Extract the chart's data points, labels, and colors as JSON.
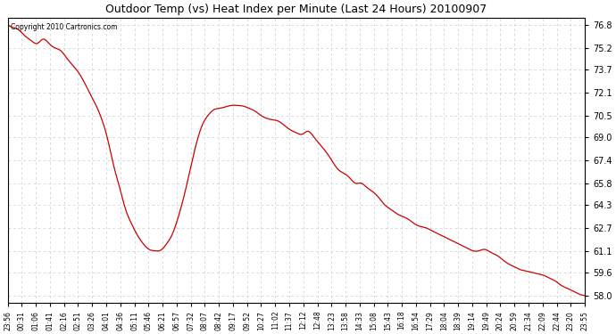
{
  "title": "Outdoor Temp (vs) Heat Index per Minute (Last 24 Hours) 20100907",
  "copyright": "Copyright 2010 Cartronics.com",
  "line_color": "#cc0000",
  "background_color": "#ffffff",
  "grid_color": "#cccccc",
  "yticks": [
    58.0,
    59.6,
    61.1,
    62.7,
    64.3,
    65.8,
    67.4,
    69.0,
    70.5,
    72.1,
    73.7,
    75.2,
    76.8
  ],
  "ylim": [
    57.5,
    77.3
  ],
  "xtick_labels": [
    "23:56",
    "00:31",
    "01:06",
    "01:41",
    "02:16",
    "02:51",
    "03:26",
    "04:01",
    "04:36",
    "05:11",
    "05:46",
    "06:21",
    "06:57",
    "07:32",
    "08:07",
    "08:42",
    "09:17",
    "09:52",
    "10:27",
    "11:02",
    "11:37",
    "12:12",
    "12:48",
    "13:23",
    "13:58",
    "14:33",
    "15:08",
    "15:43",
    "16:18",
    "16:54",
    "17:29",
    "18:04",
    "18:39",
    "19:14",
    "19:49",
    "20:24",
    "20:59",
    "21:34",
    "22:09",
    "22:44",
    "23:20",
    "23:55"
  ],
  "key_points": [
    [
      0,
      76.8
    ],
    [
      1,
      76.6
    ],
    [
      2,
      76.4
    ],
    [
      3,
      76.0
    ],
    [
      4,
      75.7
    ],
    [
      5,
      75.5
    ],
    [
      6,
      75.8
    ],
    [
      7,
      75.5
    ],
    [
      8,
      75.2
    ],
    [
      9,
      75.0
    ],
    [
      10,
      74.5
    ],
    [
      11,
      74.0
    ],
    [
      12,
      73.5
    ],
    [
      13,
      72.8
    ],
    [
      14,
      72.0
    ],
    [
      15,
      71.2
    ],
    [
      16,
      70.2
    ],
    [
      17,
      68.8
    ],
    [
      18,
      67.0
    ],
    [
      19,
      65.5
    ],
    [
      20,
      64.0
    ],
    [
      21,
      63.0
    ],
    [
      22,
      62.2
    ],
    [
      23,
      61.6
    ],
    [
      24,
      61.2
    ],
    [
      25,
      61.1
    ],
    [
      26,
      61.15
    ],
    [
      27,
      61.6
    ],
    [
      28,
      62.3
    ],
    [
      29,
      63.5
    ],
    [
      30,
      65.0
    ],
    [
      31,
      66.8
    ],
    [
      32,
      68.5
    ],
    [
      33,
      69.8
    ],
    [
      34,
      70.5
    ],
    [
      35,
      70.9
    ],
    [
      36,
      71.0
    ],
    [
      37,
      71.1
    ],
    [
      38,
      71.2
    ],
    [
      39,
      71.2
    ],
    [
      40,
      71.15
    ],
    [
      41,
      71.0
    ],
    [
      42,
      70.8
    ],
    [
      43,
      70.5
    ],
    [
      44,
      70.3
    ],
    [
      45,
      70.2
    ],
    [
      46,
      70.1
    ],
    [
      47,
      69.8
    ],
    [
      48,
      69.5
    ],
    [
      49,
      69.3
    ],
    [
      50,
      69.2
    ],
    [
      51,
      69.4
    ],
    [
      52,
      69.0
    ],
    [
      53,
      68.5
    ],
    [
      54,
      68.0
    ],
    [
      55,
      67.4
    ],
    [
      56,
      66.8
    ],
    [
      57,
      66.5
    ],
    [
      58,
      66.2
    ],
    [
      59,
      65.8
    ],
    [
      60,
      65.8
    ],
    [
      61,
      65.5
    ],
    [
      62,
      65.2
    ],
    [
      63,
      64.8
    ],
    [
      64,
      64.3
    ],
    [
      65,
      64.0
    ],
    [
      66,
      63.7
    ],
    [
      67,
      63.5
    ],
    [
      68,
      63.3
    ],
    [
      69,
      63.0
    ],
    [
      70,
      62.8
    ],
    [
      71,
      62.7
    ],
    [
      72,
      62.5
    ],
    [
      73,
      62.3
    ],
    [
      74,
      62.1
    ],
    [
      75,
      61.9
    ],
    [
      76,
      61.7
    ],
    [
      77,
      61.5
    ],
    [
      78,
      61.3
    ],
    [
      79,
      61.1
    ],
    [
      80,
      61.1
    ],
    [
      81,
      61.2
    ],
    [
      82,
      61.0
    ],
    [
      83,
      60.8
    ],
    [
      84,
      60.5
    ],
    [
      85,
      60.2
    ],
    [
      86,
      60.0
    ],
    [
      87,
      59.8
    ],
    [
      88,
      59.7
    ],
    [
      89,
      59.6
    ],
    [
      90,
      59.5
    ],
    [
      91,
      59.4
    ],
    [
      92,
      59.2
    ],
    [
      93,
      59.0
    ],
    [
      94,
      58.7
    ],
    [
      95,
      58.5
    ],
    [
      96,
      58.3
    ],
    [
      97,
      58.1
    ],
    [
      98,
      58.0
    ]
  ]
}
